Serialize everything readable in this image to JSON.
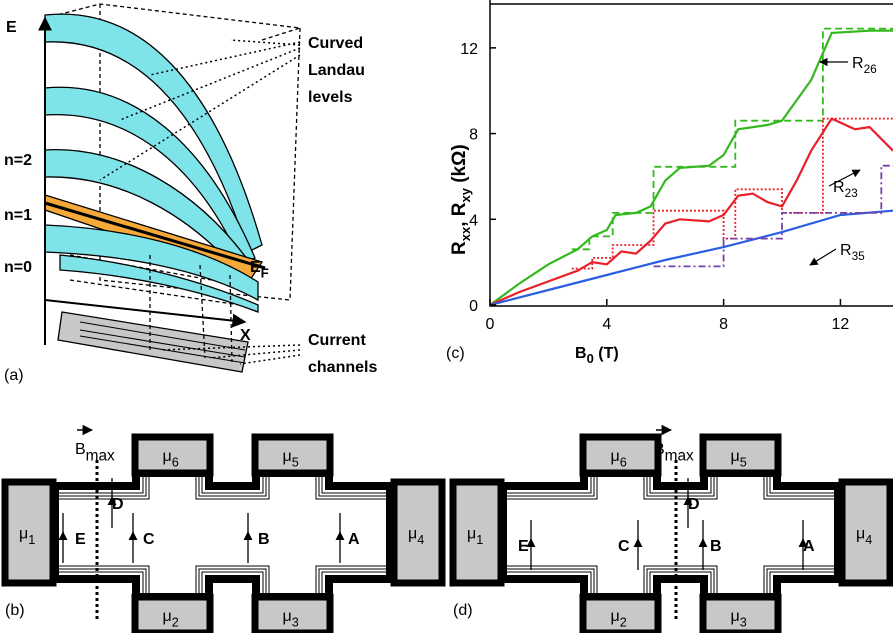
{
  "panel_a": {
    "label": "(a)",
    "energy_axis": "E",
    "position_axis": "X",
    "levels": [
      "n=2",
      "n=1",
      "n=0"
    ],
    "fermi_level": {
      "main": "E",
      "sub": "F"
    },
    "levels_note": [
      "Curved",
      "Landau",
      "levels"
    ],
    "channels_note": [
      "Current",
      "channels"
    ]
  },
  "chart_data": {
    "type": "line",
    "label": "(c)",
    "x_label": {
      "main": "B",
      "sub": "0",
      "unit": " (T)"
    },
    "y_label": [
      "R",
      "xx",
      ", R",
      "xy",
      " (kΩ)"
    ],
    "xlim": [
      0,
      13.8
    ],
    "ylim": [
      0,
      14
    ],
    "xticks": [
      0,
      4,
      8,
      12
    ],
    "yticks": [
      0,
      4,
      8,
      12
    ],
    "series": [
      {
        "color": "#33b81e",
        "style": "solid",
        "x": [
          0,
          1,
          2,
          3,
          3.5,
          4,
          4.3,
          5,
          5.5,
          6,
          6.5,
          7.5,
          8,
          8.5,
          9.5,
          10,
          11,
          11.7,
          13,
          13.8
        ],
        "values": [
          0,
          1,
          1.9,
          2.6,
          3.2,
          3.5,
          4.2,
          4.3,
          4.6,
          5.8,
          6.4,
          6.5,
          7.0,
          8.2,
          8.4,
          8.6,
          10.5,
          12.7,
          12.8,
          12.8
        ]
      },
      {
        "color": "#33b81e",
        "style": "dashed",
        "x": [
          2.8,
          3.4,
          3.4,
          4.2,
          4.2,
          5.6,
          5.6,
          8.4,
          8.4,
          11.4,
          11.4,
          13.8
        ],
        "values": [
          2.6,
          2.6,
          3.2,
          3.2,
          4.3,
          4.3,
          6.45,
          6.45,
          8.6,
          8.6,
          12.9,
          12.9
        ]
      },
      {
        "color": "#e8202a",
        "style": "solid",
        "x": [
          0,
          1,
          2,
          3,
          3.5,
          4,
          4.5,
          5,
          5.5,
          6,
          6.5,
          7.5,
          8,
          8.5,
          9,
          9.5,
          10,
          10.5,
          11,
          11.7,
          12.5,
          13,
          13.8
        ],
        "values": [
          0,
          0.6,
          1.1,
          1.6,
          2.0,
          1.9,
          2.5,
          2.4,
          3.0,
          3.8,
          4.0,
          3.9,
          4.2,
          5.1,
          5.2,
          4.8,
          4.6,
          5.8,
          7.2,
          8.7,
          8.2,
          8.3,
          7.2
        ]
      },
      {
        "color": "#e8202a",
        "style": "dotted",
        "x": [
          2.8,
          3.5,
          3.5,
          4.2,
          4.2,
          5.6,
          5.6,
          8.0,
          8.0,
          8.4,
          8.4,
          10.0,
          10.0,
          11.4,
          11.4,
          13.8
        ],
        "values": [
          1.7,
          1.7,
          2.2,
          2.2,
          2.8,
          2.8,
          4.4,
          4.4,
          3.1,
          3.1,
          5.4,
          5.4,
          4.3,
          4.3,
          8.7,
          8.7
        ]
      },
      {
        "color": "#2b5fe0",
        "style": "solid",
        "x": [
          0,
          2,
          4,
          6,
          8,
          10,
          12,
          13.8
        ],
        "values": [
          0,
          0.7,
          1.4,
          2.1,
          2.7,
          3.4,
          4.2,
          4.4
        ]
      },
      {
        "color": "#7a3fa8",
        "style": "dashdot",
        "x": [
          5.6,
          8.0,
          8.0,
          10.0,
          10.0,
          13.4,
          13.4,
          13.8
        ],
        "values": [
          1.8,
          1.8,
          3.1,
          3.1,
          4.3,
          4.3,
          6.5,
          6.5
        ]
      }
    ],
    "annotations": [
      {
        "main": "R",
        "sub": "26"
      },
      {
        "main": "R",
        "sub": "23"
      },
      {
        "main": "R",
        "sub": "35"
      }
    ]
  },
  "panel_b": {
    "label": "(b)",
    "field": {
      "main": "B",
      "sub": "max"
    },
    "contact_symbol": "μ",
    "contacts": [
      "1",
      "2",
      "3",
      "4",
      "5",
      "6"
    ],
    "points": [
      "A",
      "B",
      "C",
      "D",
      "E"
    ]
  },
  "panel_d": {
    "label": "(d)",
    "field": {
      "main": "B",
      "sub": "max"
    },
    "contact_symbol": "μ",
    "contacts": [
      "1",
      "2",
      "3",
      "4",
      "5",
      "6"
    ],
    "points": [
      "A",
      "B",
      "C",
      "D",
      "E"
    ]
  }
}
